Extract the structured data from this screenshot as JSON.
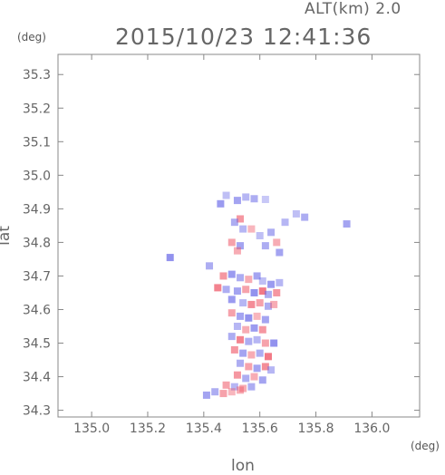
{
  "header": {
    "altitude_label": "ALT(km) 2.0",
    "timestamp": "2015/10/23 12:41:36"
  },
  "chart_data": {
    "type": "scatter",
    "xlabel": "lon",
    "ylabel": "lat",
    "xunit": "(deg)",
    "yunit": "(deg)",
    "xlim": [
      134.88,
      136.17
    ],
    "ylim": [
      34.28,
      35.36
    ],
    "xticks": [
      "135.0",
      "135.2",
      "135.4",
      "135.6",
      "135.8",
      "136.0"
    ],
    "xtick_values": [
      135.0,
      135.2,
      135.4,
      135.6,
      135.8,
      136.0
    ],
    "yticks": [
      "34.3",
      "34.4",
      "34.5",
      "34.6",
      "34.7",
      "34.8",
      "34.9",
      "35.0",
      "35.1",
      "35.2",
      "35.3"
    ],
    "ytick_values": [
      34.3,
      34.4,
      34.5,
      34.6,
      34.7,
      34.8,
      34.9,
      35.0,
      35.1,
      35.2,
      35.3
    ],
    "grid": false,
    "colors": {
      "positive": "#ee5566",
      "negative": "#6a6ae8",
      "frame": "#888888",
      "text": "#666666"
    },
    "points": [
      {
        "x": 135.55,
        "y": 34.935,
        "v": -0.4
      },
      {
        "x": 135.52,
        "y": 34.925,
        "v": -0.6
      },
      {
        "x": 135.48,
        "y": 34.94,
        "v": -0.3
      },
      {
        "x": 135.58,
        "y": 34.93,
        "v": -0.5
      },
      {
        "x": 135.62,
        "y": 34.928,
        "v": -0.2
      },
      {
        "x": 135.46,
        "y": 34.915,
        "v": -0.7
      },
      {
        "x": 135.53,
        "y": 34.87,
        "v": 0.6
      },
      {
        "x": 135.51,
        "y": 34.86,
        "v": -0.5
      },
      {
        "x": 135.54,
        "y": 34.84,
        "v": -0.4
      },
      {
        "x": 135.5,
        "y": 34.8,
        "v": 0.5
      },
      {
        "x": 135.53,
        "y": 34.79,
        "v": -0.6
      },
      {
        "x": 135.52,
        "y": 34.775,
        "v": 0.4
      },
      {
        "x": 135.57,
        "y": 34.84,
        "v": 0.3
      },
      {
        "x": 135.6,
        "y": 34.82,
        "v": -0.3
      },
      {
        "x": 135.64,
        "y": 34.83,
        "v": -0.5
      },
      {
        "x": 135.66,
        "y": 34.8,
        "v": 0.4
      },
      {
        "x": 135.62,
        "y": 34.79,
        "v": -0.5
      },
      {
        "x": 135.67,
        "y": 34.77,
        "v": -0.6
      },
      {
        "x": 135.69,
        "y": 34.86,
        "v": -0.4
      },
      {
        "x": 135.73,
        "y": 34.885,
        "v": -0.3
      },
      {
        "x": 135.76,
        "y": 34.875,
        "v": -0.5
      },
      {
        "x": 135.91,
        "y": 34.855,
        "v": -0.6
      },
      {
        "x": 135.28,
        "y": 34.755,
        "v": -0.8
      },
      {
        "x": 135.42,
        "y": 34.73,
        "v": -0.5
      },
      {
        "x": 135.47,
        "y": 34.7,
        "v": 0.6
      },
      {
        "x": 135.5,
        "y": 34.705,
        "v": -0.7
      },
      {
        "x": 135.53,
        "y": 34.695,
        "v": -0.5
      },
      {
        "x": 135.56,
        "y": 34.69,
        "v": 0.4
      },
      {
        "x": 135.59,
        "y": 34.7,
        "v": -0.6
      },
      {
        "x": 135.61,
        "y": 34.685,
        "v": -0.3
      },
      {
        "x": 135.64,
        "y": 34.675,
        "v": -0.7
      },
      {
        "x": 135.67,
        "y": 34.68,
        "v": -0.4
      },
      {
        "x": 135.45,
        "y": 34.665,
        "v": 0.8
      },
      {
        "x": 135.48,
        "y": 34.66,
        "v": -0.5
      },
      {
        "x": 135.52,
        "y": 34.655,
        "v": -0.6
      },
      {
        "x": 135.55,
        "y": 34.66,
        "v": 0.5
      },
      {
        "x": 135.58,
        "y": 34.65,
        "v": -0.8
      },
      {
        "x": 135.61,
        "y": 34.655,
        "v": 0.9
      },
      {
        "x": 135.63,
        "y": 34.645,
        "v": -0.5
      },
      {
        "x": 135.66,
        "y": 34.65,
        "v": 0.6
      },
      {
        "x": 135.5,
        "y": 34.63,
        "v": -0.7
      },
      {
        "x": 135.54,
        "y": 34.62,
        "v": -0.4
      },
      {
        "x": 135.57,
        "y": 34.615,
        "v": 0.7
      },
      {
        "x": 135.6,
        "y": 34.62,
        "v": 0.5
      },
      {
        "x": 135.63,
        "y": 34.61,
        "v": -0.5
      },
      {
        "x": 135.65,
        "y": 34.615,
        "v": 0.4
      },
      {
        "x": 135.5,
        "y": 34.59,
        "v": 0.5
      },
      {
        "x": 135.53,
        "y": 34.58,
        "v": -0.6
      },
      {
        "x": 135.56,
        "y": 34.575,
        "v": -0.8
      },
      {
        "x": 135.59,
        "y": 34.58,
        "v": 0.3
      },
      {
        "x": 135.62,
        "y": 34.57,
        "v": -0.6
      },
      {
        "x": 135.52,
        "y": 34.55,
        "v": -0.4
      },
      {
        "x": 135.55,
        "y": 34.54,
        "v": 0.4
      },
      {
        "x": 135.58,
        "y": 34.545,
        "v": -0.7
      },
      {
        "x": 135.61,
        "y": 34.54,
        "v": 0.6
      },
      {
        "x": 135.5,
        "y": 34.52,
        "v": -0.5
      },
      {
        "x": 135.53,
        "y": 34.51,
        "v": 0.8
      },
      {
        "x": 135.56,
        "y": 34.505,
        "v": -0.5
      },
      {
        "x": 135.59,
        "y": 34.51,
        "v": -0.4
      },
      {
        "x": 135.62,
        "y": 34.5,
        "v": 0.5
      },
      {
        "x": 135.65,
        "y": 34.5,
        "v": -0.8
      },
      {
        "x": 135.51,
        "y": 34.48,
        "v": 0.6
      },
      {
        "x": 135.54,
        "y": 34.47,
        "v": -0.6
      },
      {
        "x": 135.57,
        "y": 34.465,
        "v": 0.4
      },
      {
        "x": 135.6,
        "y": 34.47,
        "v": -0.5
      },
      {
        "x": 135.63,
        "y": 34.46,
        "v": 0.9
      },
      {
        "x": 135.53,
        "y": 34.44,
        "v": -0.5
      },
      {
        "x": 135.56,
        "y": 34.43,
        "v": 0.5
      },
      {
        "x": 135.59,
        "y": 34.425,
        "v": -0.6
      },
      {
        "x": 135.62,
        "y": 34.43,
        "v": 0.7
      },
      {
        "x": 135.64,
        "y": 34.42,
        "v": -0.4
      },
      {
        "x": 135.52,
        "y": 34.405,
        "v": 0.6
      },
      {
        "x": 135.55,
        "y": 34.395,
        "v": -0.5
      },
      {
        "x": 135.58,
        "y": 34.4,
        "v": 0.4
      },
      {
        "x": 135.61,
        "y": 34.39,
        "v": -0.6
      },
      {
        "x": 135.48,
        "y": 34.375,
        "v": 0.5
      },
      {
        "x": 135.51,
        "y": 34.37,
        "v": -0.4
      },
      {
        "x": 135.54,
        "y": 34.365,
        "v": 0.4
      },
      {
        "x": 135.57,
        "y": 34.37,
        "v": -0.5
      },
      {
        "x": 135.44,
        "y": 34.355,
        "v": -0.5
      },
      {
        "x": 135.41,
        "y": 34.345,
        "v": -0.6
      },
      {
        "x": 135.47,
        "y": 34.35,
        "v": 0.5
      },
      {
        "x": 135.5,
        "y": 34.355,
        "v": 0.3
      },
      {
        "x": 135.53,
        "y": 34.36,
        "v": 0.4
      }
    ]
  }
}
